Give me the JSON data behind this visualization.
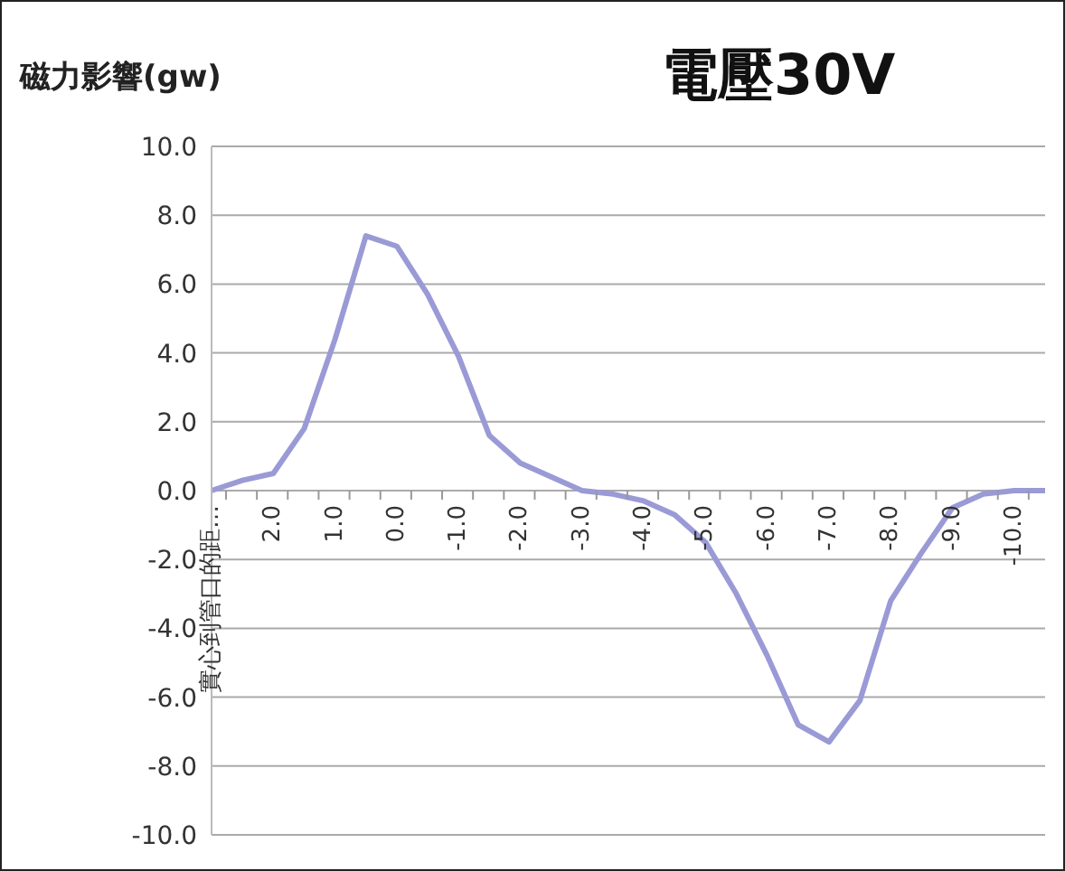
{
  "chart_data": {
    "type": "line",
    "title": "電壓30V",
    "ylabel": "磁力影響(gw)",
    "categories": [
      "實心到管口的距…",
      null,
      "2.0",
      null,
      "1.0",
      null,
      "0.0",
      null,
      "-1.0",
      null,
      "-2.0",
      null,
      "-3.0",
      null,
      "-4.0",
      null,
      "-5.0",
      null,
      "-6.0",
      null,
      "-7.0",
      null,
      "-8.0",
      null,
      "-9.0",
      null,
      "-10.0",
      null
    ],
    "series": [
      {
        "color": "#9a9ad6",
        "values": [
          0.0,
          0.3,
          0.5,
          1.8,
          4.4,
          7.4,
          7.1,
          5.7,
          3.9,
          1.6,
          0.8,
          0.4,
          0.0,
          -0.1,
          -0.3,
          -0.7,
          -1.5,
          -3.0,
          -4.8,
          -6.8,
          -7.3,
          -6.1,
          -3.2,
          -1.8,
          -0.5,
          -0.1,
          0.0,
          0.0
        ]
      }
    ],
    "ylim": [
      -10,
      10
    ],
    "yticks": [
      {
        "value": -10,
        "label": "-10.0"
      },
      {
        "value": -8,
        "label": "-8.0"
      },
      {
        "value": -6,
        "label": "-6.0"
      },
      {
        "value": -4,
        "label": "-4.0"
      },
      {
        "value": -2,
        "label": "-2.0"
      },
      {
        "value": 0,
        "label": "0.0"
      },
      {
        "value": 2,
        "label": "2.0"
      },
      {
        "value": 4,
        "label": "4.0"
      },
      {
        "value": 6,
        "label": "6.0"
      },
      {
        "value": 8,
        "label": "8.0"
      },
      {
        "value": 10,
        "label": "10.0"
      }
    ],
    "grid": "y",
    "legend": false,
    "marker": "none",
    "line_style": "solid"
  }
}
